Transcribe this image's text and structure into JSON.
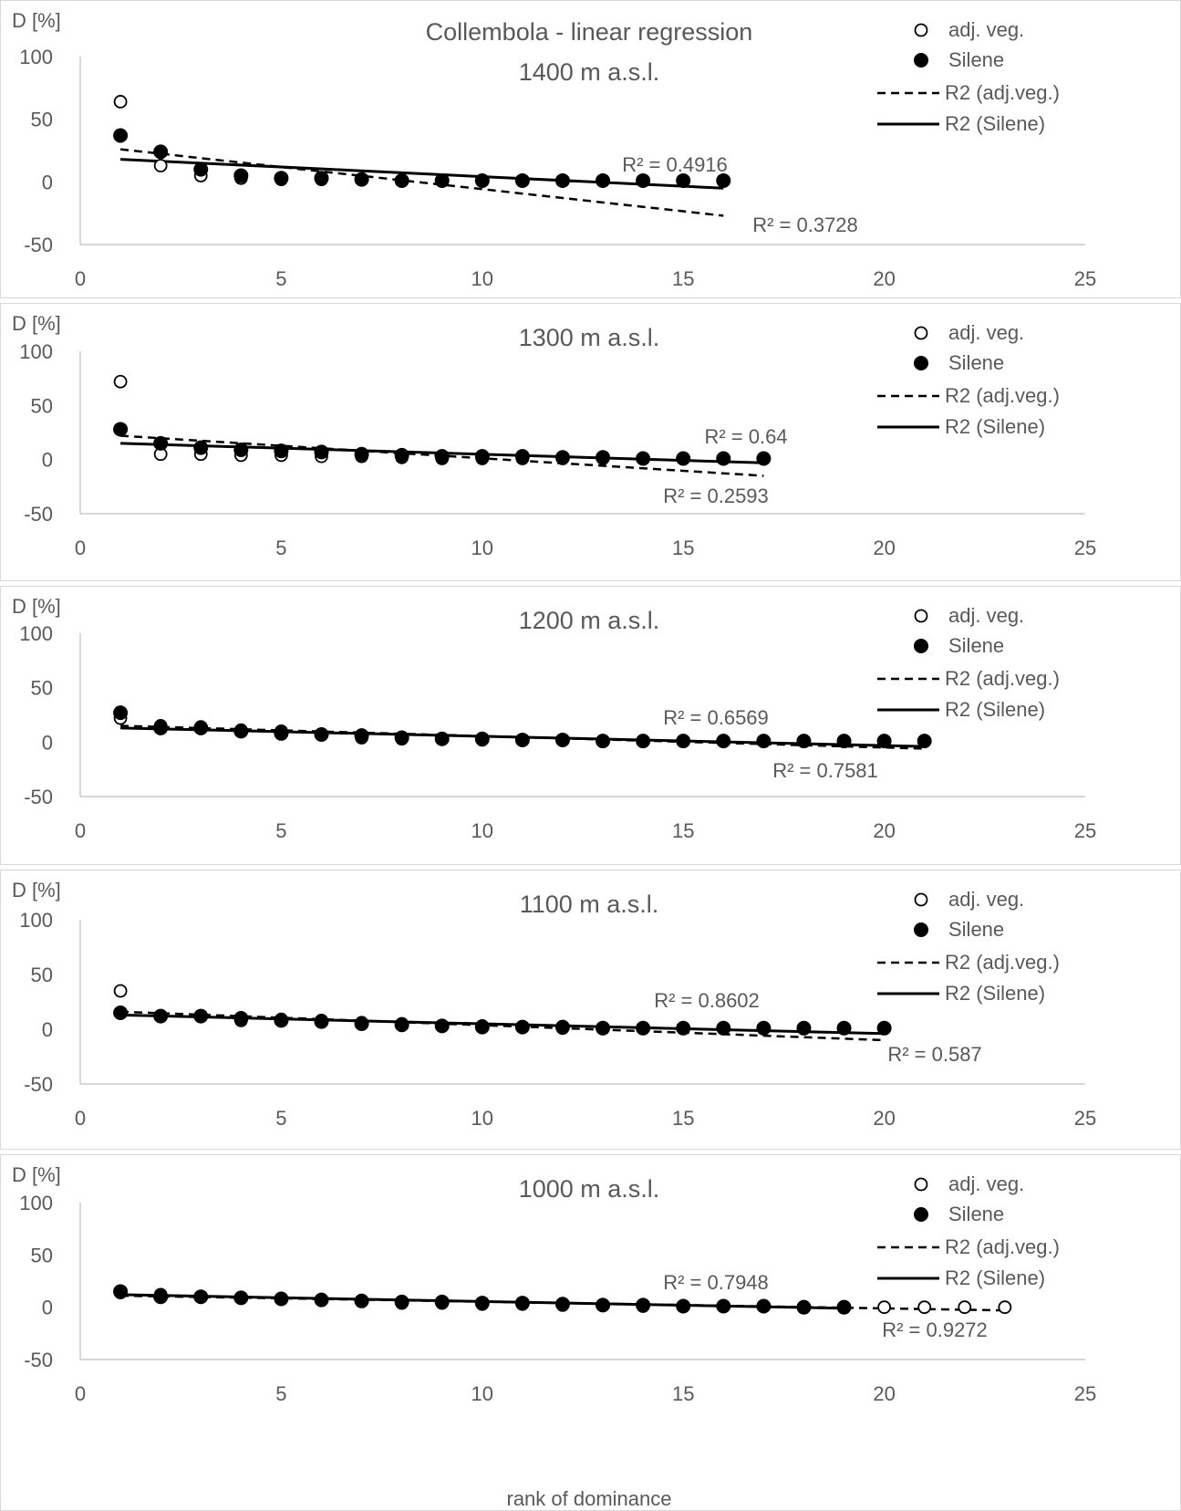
{
  "figure": {
    "title": "Collembola - linear regression",
    "xlabel": "rank of dominance"
  },
  "legend": {
    "adj_veg": "adj. veg.",
    "silene": "Silene",
    "r2_adj": "R2 (adj.veg.)",
    "r2_silene": "R2 (Silene)"
  },
  "chart_data": [
    {
      "type": "scatter",
      "subtitle": "1400 m a.s.l.",
      "ylabel": "D [%]",
      "xlim": [
        0,
        25
      ],
      "ylim": [
        -50,
        100
      ],
      "xticks": [
        0,
        5,
        10,
        15,
        20,
        25
      ],
      "yticks": [
        -50,
        0,
        50,
        100
      ],
      "series": [
        {
          "name": "adj. veg.",
          "marker": "open",
          "x": [
            1,
            2,
            3,
            4,
            5,
            6,
            7,
            8,
            9,
            10,
            11,
            12,
            13,
            14,
            15,
            16
          ],
          "y": [
            64,
            13,
            5,
            3,
            2,
            2,
            2,
            1,
            1,
            1,
            1,
            1,
            1,
            1,
            1,
            1
          ]
        },
        {
          "name": "Silene",
          "marker": "filled",
          "x": [
            1,
            2,
            3,
            4,
            5,
            6,
            7,
            8,
            9,
            10,
            11,
            12,
            13,
            14,
            15,
            16
          ],
          "y": [
            37,
            24,
            10,
            5,
            3,
            3,
            2,
            1,
            1,
            1,
            1,
            1,
            1,
            1,
            1,
            1
          ]
        }
      ],
      "trendlines": [
        {
          "name": "R2 (adj.veg.)",
          "style": "dashed",
          "x": [
            1,
            16
          ],
          "y": [
            26,
            -27
          ],
          "r2": "R² = 0.3728"
        },
        {
          "name": "R2 (Silene)",
          "style": "solid",
          "x": [
            1,
            16
          ],
          "y": [
            18,
            -5
          ],
          "r2": "R² = 0.4916"
        }
      ]
    },
    {
      "type": "scatter",
      "subtitle": "1300 m a.s.l.",
      "ylabel": "D [%]",
      "xlim": [
        0,
        25
      ],
      "ylim": [
        -50,
        100
      ],
      "xticks": [
        0,
        5,
        10,
        15,
        20,
        25
      ],
      "yticks": [
        -50,
        0,
        50,
        100
      ],
      "series": [
        {
          "name": "adj. veg.",
          "marker": "open",
          "x": [
            1,
            2,
            3,
            4,
            5,
            6,
            7,
            8,
            9,
            10,
            11,
            12,
            13,
            14,
            15,
            16,
            17
          ],
          "y": [
            72,
            5,
            5,
            4,
            4,
            3,
            3,
            2,
            1,
            1,
            1,
            1,
            1,
            1,
            1,
            1,
            1
          ]
        },
        {
          "name": "Silene",
          "marker": "filled",
          "x": [
            1,
            2,
            3,
            4,
            5,
            6,
            7,
            8,
            9,
            10,
            11,
            12,
            13,
            14,
            15,
            16,
            17
          ],
          "y": [
            28,
            15,
            11,
            9,
            8,
            7,
            5,
            4,
            3,
            3,
            3,
            2,
            2,
            1,
            1,
            1,
            1
          ]
        }
      ],
      "trendlines": [
        {
          "name": "R2 (adj.veg.)",
          "style": "dashed",
          "x": [
            1,
            17
          ],
          "y": [
            22,
            -15
          ],
          "r2": "R² = 0.2593"
        },
        {
          "name": "R2 (Silene)",
          "style": "solid",
          "x": [
            1,
            17
          ],
          "y": [
            15,
            -3
          ],
          "r2": "R² = 0.64"
        }
      ]
    },
    {
      "type": "scatter",
      "subtitle": "1200 m a.s.l.",
      "ylabel": "D [%]",
      "xlim": [
        0,
        25
      ],
      "ylim": [
        -50,
        100
      ],
      "xticks": [
        0,
        5,
        10,
        15,
        20,
        25
      ],
      "yticks": [
        -50,
        0,
        50,
        100
      ],
      "series": [
        {
          "name": "adj. veg.",
          "marker": "open",
          "x": [
            1,
            2,
            3,
            4,
            5,
            6,
            7,
            8,
            9,
            10,
            11,
            12,
            13,
            14,
            15,
            16,
            17,
            18,
            19,
            20,
            21
          ],
          "y": [
            22,
            15,
            14,
            11,
            10,
            7,
            4,
            3,
            3,
            2,
            2,
            2,
            1,
            1,
            1,
            1,
            1,
            1,
            1,
            1,
            1
          ]
        },
        {
          "name": "Silene",
          "marker": "filled",
          "x": [
            1,
            2,
            3,
            4,
            5,
            6,
            7,
            8,
            9,
            10,
            11,
            12,
            13,
            14,
            15,
            16,
            17,
            18,
            19,
            20,
            21
          ],
          "y": [
            27,
            13,
            13,
            10,
            8,
            7,
            6,
            4,
            3,
            3,
            2,
            2,
            1,
            1,
            1,
            1,
            1,
            1,
            1,
            1,
            1
          ]
        }
      ],
      "trendlines": [
        {
          "name": "R2 (adj.veg.)",
          "style": "dashed",
          "x": [
            1,
            21
          ],
          "y": [
            15,
            -6
          ],
          "r2": "R² = 0.7581"
        },
        {
          "name": "R2 (Silene)",
          "style": "solid",
          "x": [
            1,
            21
          ],
          "y": [
            13,
            -4
          ],
          "r2": "R² = 0.6569"
        }
      ]
    },
    {
      "type": "scatter",
      "subtitle": "1100 m a.s.l.",
      "ylabel": "D [%]",
      "xlim": [
        0,
        25
      ],
      "ylim": [
        -50,
        100
      ],
      "xticks": [
        0,
        5,
        10,
        15,
        20,
        25
      ],
      "yticks": [
        -50,
        0,
        50,
        100
      ],
      "series": [
        {
          "name": "adj. veg.",
          "marker": "open",
          "x": [
            1,
            2,
            3,
            4,
            5,
            6,
            7,
            8,
            9,
            10,
            11,
            12,
            13,
            14,
            15,
            16,
            17,
            18,
            19,
            20
          ],
          "y": [
            35,
            12,
            12,
            8,
            9,
            8,
            6,
            5,
            3,
            3,
            2,
            1,
            1,
            1,
            1,
            1,
            1,
            1,
            1,
            1
          ]
        },
        {
          "name": "Silene",
          "marker": "filled",
          "x": [
            1,
            2,
            3,
            4,
            5,
            6,
            7,
            8,
            9,
            10,
            11,
            12,
            13,
            14,
            15,
            16,
            17,
            18,
            19,
            20
          ],
          "y": [
            15,
            12,
            12,
            10,
            8,
            7,
            5,
            4,
            3,
            2,
            2,
            2,
            1,
            1,
            1,
            1,
            1,
            1,
            1,
            1
          ]
        }
      ],
      "trendlines": [
        {
          "name": "R2 (adj.veg.)",
          "style": "dashed",
          "x": [
            1,
            20
          ],
          "y": [
            16,
            -10
          ],
          "r2": "R² = 0.587"
        },
        {
          "name": "R2 (Silene)",
          "style": "solid",
          "x": [
            1,
            20
          ],
          "y": [
            13,
            -4
          ],
          "r2": "R² = 0.8602"
        }
      ]
    },
    {
      "type": "scatter",
      "subtitle": "1000 m a.s.l.",
      "ylabel": "D [%]",
      "xlim": [
        0,
        25
      ],
      "ylim": [
        -50,
        100
      ],
      "xticks": [
        0,
        5,
        10,
        15,
        20,
        25
      ],
      "yticks": [
        -50,
        0,
        50,
        100
      ],
      "series": [
        {
          "name": "adj. veg.",
          "marker": "open",
          "x": [
            1,
            2,
            3,
            4,
            5,
            6,
            7,
            8,
            9,
            10,
            11,
            12,
            13,
            14,
            15,
            16,
            17,
            18,
            19,
            20,
            21,
            22,
            23
          ],
          "y": [
            14,
            12,
            10,
            9,
            8,
            7,
            6,
            4,
            4,
            3,
            3,
            2,
            2,
            1,
            1,
            1,
            1,
            0,
            0,
            0,
            0,
            0,
            0
          ]
        },
        {
          "name": "Silene",
          "marker": "filled",
          "x": [
            1,
            2,
            3,
            4,
            5,
            6,
            7,
            8,
            9,
            10,
            11,
            12,
            13,
            14,
            15,
            16,
            17,
            18,
            19
          ],
          "y": [
            15,
            10,
            10,
            9,
            8,
            7,
            6,
            5,
            5,
            4,
            4,
            3,
            2,
            2,
            1,
            1,
            1,
            0,
            0
          ]
        }
      ],
      "trendlines": [
        {
          "name": "R2 (adj.veg.)",
          "style": "dashed",
          "x": [
            1,
            23
          ],
          "y": [
            11,
            -3
          ],
          "r2": "R² = 0.9272"
        },
        {
          "name": "R2 (Silene)",
          "style": "solid",
          "x": [
            1,
            19
          ],
          "y": [
            12,
            -1
          ],
          "r2": "R² = 0.7948"
        }
      ]
    }
  ]
}
